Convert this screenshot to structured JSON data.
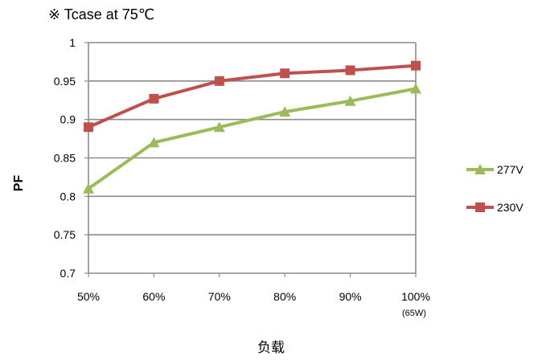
{
  "chart_data": {
    "type": "line",
    "title": "※ Tcase at 75℃",
    "xlabel": "负载",
    "ylabel": "PF",
    "categories": [
      "50%",
      "60%",
      "70%",
      "80%",
      "90%",
      "100%"
    ],
    "category_note": "(65W)",
    "ylim": [
      0.7,
      1.0
    ],
    "yticks": [
      "0.7",
      "0.75",
      "0.8",
      "0.85",
      "0.9",
      "0.95",
      "1"
    ],
    "grid": true,
    "legend_position": "right",
    "series": [
      {
        "name": "277V",
        "color": "#9BBB59",
        "marker": "triangle",
        "values": [
          0.81,
          0.87,
          0.89,
          0.91,
          0.924,
          0.94
        ]
      },
      {
        "name": "230V",
        "color": "#C0504D",
        "marker": "square",
        "values": [
          0.89,
          0.927,
          0.95,
          0.96,
          0.964,
          0.97
        ]
      }
    ]
  }
}
